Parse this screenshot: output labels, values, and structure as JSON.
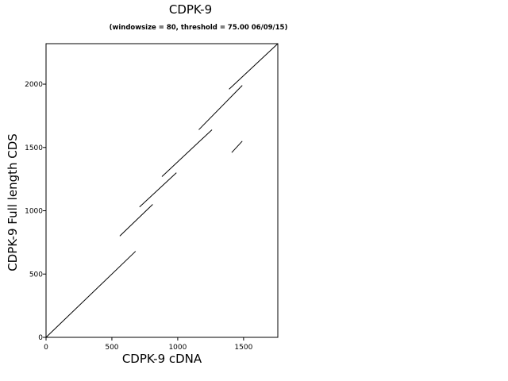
{
  "chart_data": {
    "type": "line",
    "title": "CDPK-9",
    "subtitle": "(windowsize = 80, threshold = 75.00  06/09/15)",
    "xlabel": "CDPK-9 cDNA",
    "ylabel": "CDPK-9   Full length CDS",
    "xlim": [
      0,
      1760
    ],
    "ylim": [
      0,
      2320
    ],
    "xticks": [
      0,
      500,
      1000,
      1500
    ],
    "yticks": [
      0,
      500,
      1000,
      1500,
      2000
    ],
    "grid": false,
    "series": [
      {
        "values": [
          [
            0,
            0
          ],
          [
            680,
            680
          ]
        ]
      },
      {
        "values": [
          [
            560,
            800
          ],
          [
            810,
            1050
          ]
        ]
      },
      {
        "values": [
          [
            710,
            1030
          ],
          [
            990,
            1300
          ]
        ]
      },
      {
        "values": [
          [
            880,
            1270
          ],
          [
            1260,
            1640
          ]
        ]
      },
      {
        "values": [
          [
            1160,
            1640
          ],
          [
            1490,
            1990
          ]
        ]
      },
      {
        "values": [
          [
            1390,
            1960
          ],
          [
            1760,
            2320
          ]
        ]
      },
      {
        "values": [
          [
            1410,
            1460
          ],
          [
            1490,
            1550
          ]
        ]
      }
    ]
  }
}
